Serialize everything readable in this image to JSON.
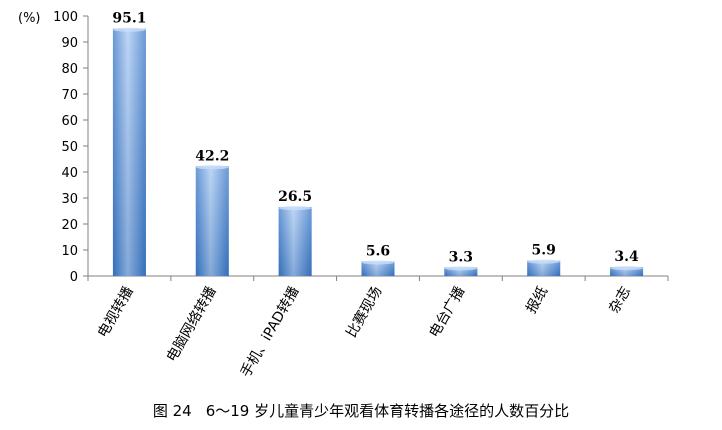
{
  "chart_data": {
    "type": "bar",
    "unit_label": "(%)",
    "categories": [
      "电视转播",
      "电脑网络转播",
      "手机、iPAD转播",
      "比赛现场",
      "电台广播",
      "报纸",
      "杂志"
    ],
    "values": [
      95.1,
      42.2,
      26.5,
      5.6,
      3.3,
      5.9,
      3.4
    ],
    "value_labels": [
      "95.1",
      "42.2",
      "26.5",
      "5.6",
      "3.3",
      "5.9",
      "3.4"
    ],
    "yticks": [
      0,
      10,
      20,
      30,
      40,
      50,
      60,
      70,
      80,
      90,
      100
    ],
    "ylim": [
      0,
      100
    ],
    "grid": false,
    "bar_color_top": "#a8c8f0",
    "bar_color_bottom": "#3a78c8"
  },
  "caption": {
    "figure_number": "图 24",
    "text": "6～19 岁儿童青少年观看体育转播各途径的人数百分比"
  }
}
